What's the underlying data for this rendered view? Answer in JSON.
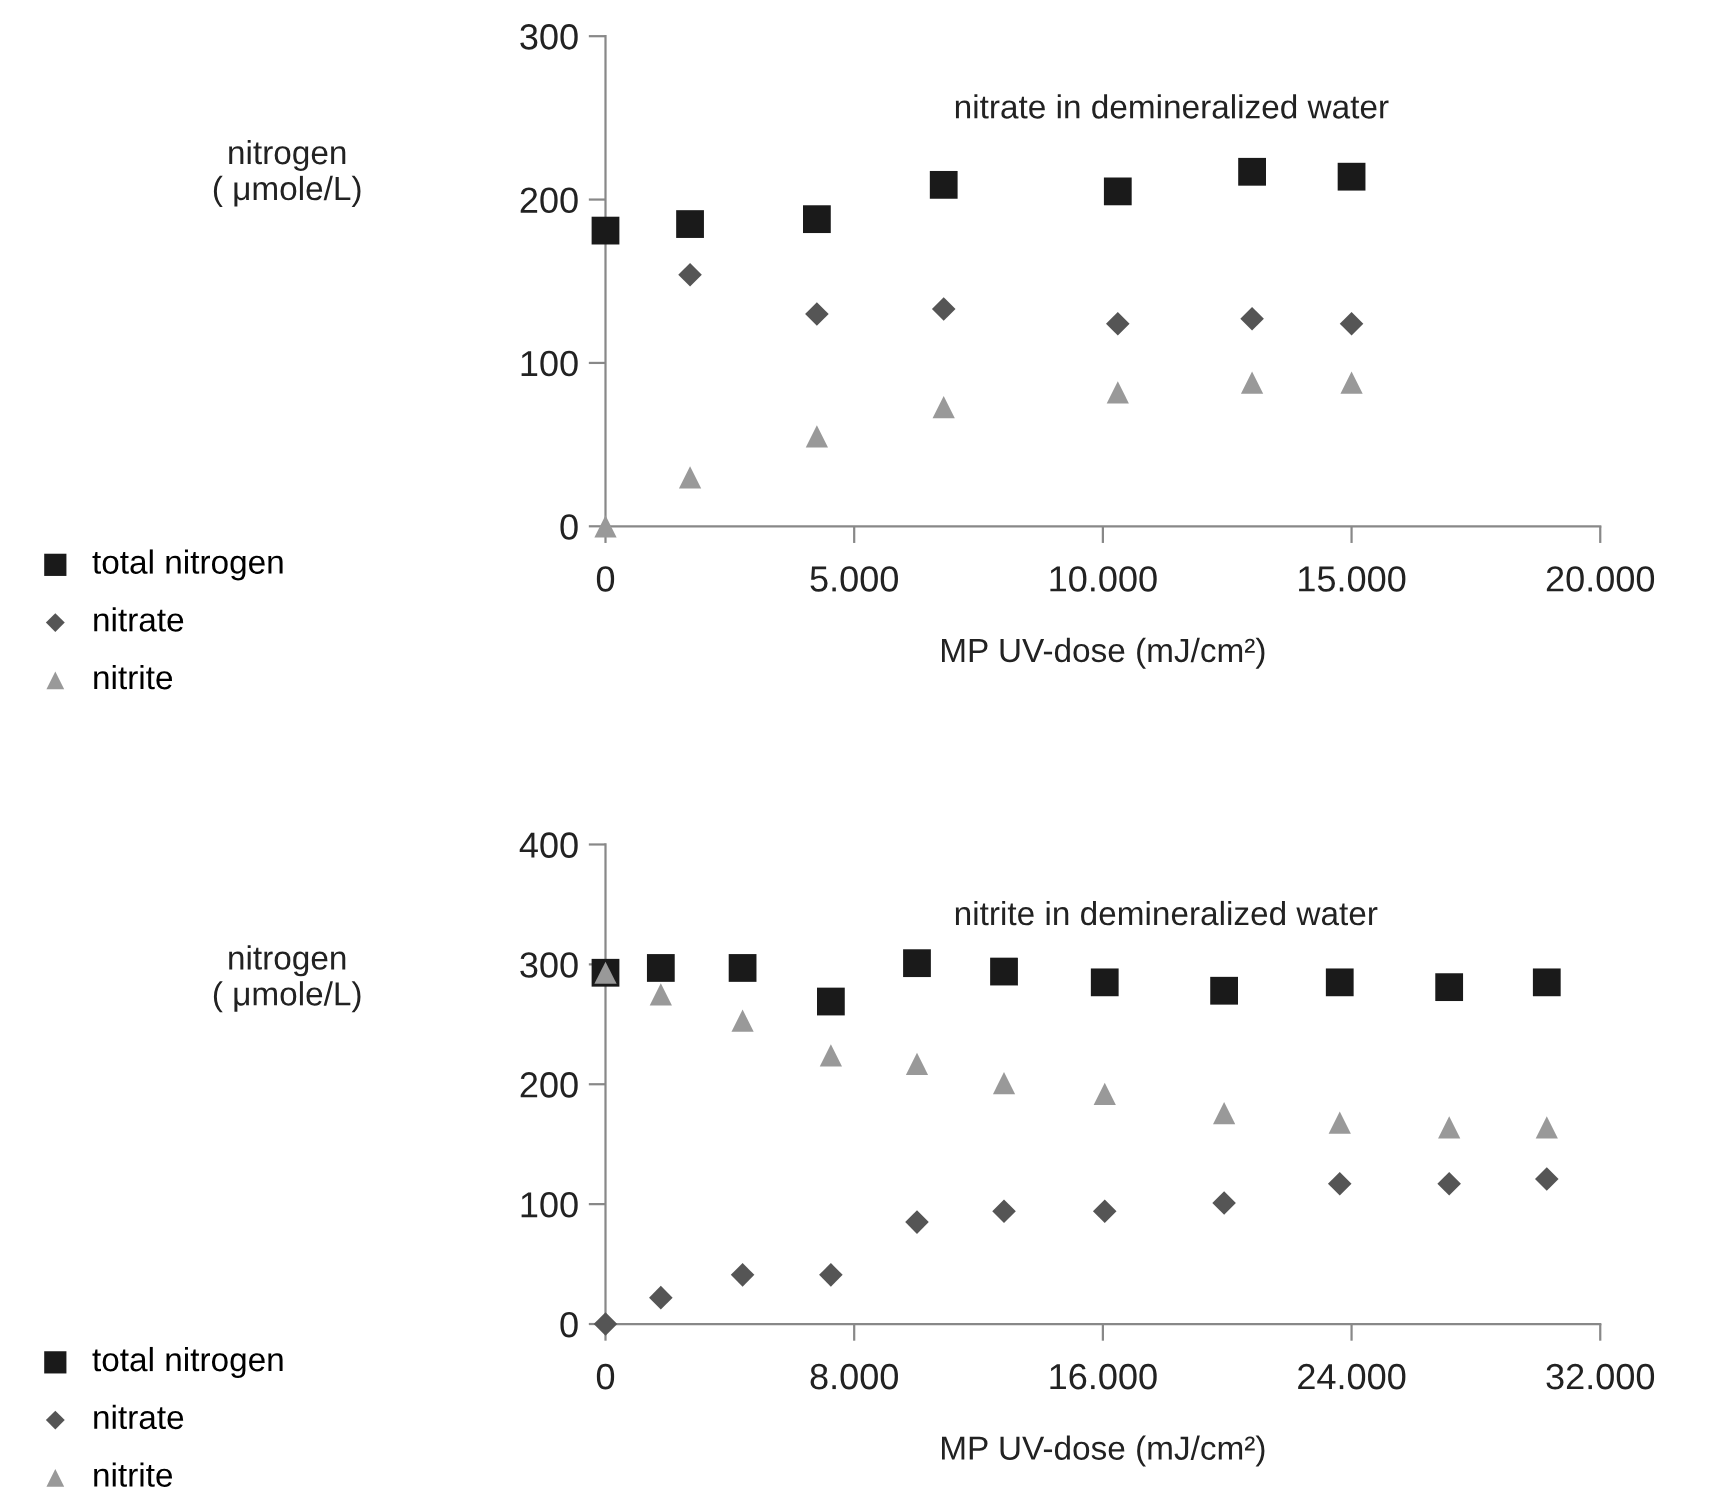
{
  "chart_data": [
    {
      "type": "scatter",
      "title": "nitrate in demineralized water",
      "xlabel": "MP UV-dose (mJ/cm²)",
      "ylabel": "nitrogen\n( μmole/L)",
      "x": [
        0,
        1700,
        4250,
        6800,
        10300,
        13000,
        15000
      ],
      "series": [
        {
          "name": "total nitrogen",
          "color": "#1a1a1a",
          "marker": "square",
          "values": [
            181,
            185,
            188,
            209,
            205,
            217,
            214
          ]
        },
        {
          "name": "nitrate",
          "color": "#555555",
          "marker": "diamond",
          "values": [
            null,
            154,
            130,
            133,
            124,
            127,
            124
          ]
        },
        {
          "name": "nitrite",
          "color": "#999999",
          "marker": "triangle",
          "values": [
            0,
            30,
            55,
            73,
            82,
            88,
            88
          ]
        }
      ],
      "xlim": [
        0,
        20000
      ],
      "xticks": [
        0,
        {
          "value": 5000,
          "label": "5.000"
        },
        {
          "value": 10000,
          "label": "10.000"
        },
        {
          "value": 15000,
          "label": "15.000"
        },
        {
          "value": 20000,
          "label": "20.000"
        }
      ],
      "ylim": [
        0,
        300
      ],
      "yticks": [
        0,
        100,
        200,
        300
      ],
      "grid": false,
      "legend": "left"
    },
    {
      "type": "scatter",
      "title": "nitrite in demineralized water",
      "xlabel": "MP UV-dose (mJ/cm²)",
      "ylabel": "nitrogen\n( μmole/L)",
      "x": [
        0,
        1780,
        4410,
        7250,
        10020,
        12820,
        16060,
        19900,
        23620,
        27140,
        30280
      ],
      "series": [
        {
          "name": "total nitrogen",
          "color": "#1a1a1a",
          "marker": "square",
          "values": [
            293,
            297,
            297,
            269,
            301,
            294,
            285,
            278,
            285,
            281,
            285
          ]
        },
        {
          "name": "nitrate",
          "color": "#555555",
          "marker": "diamond",
          "values": [
            0,
            22,
            41,
            41,
            85,
            94,
            94,
            101,
            117,
            117,
            121
          ]
        },
        {
          "name": "nitrite",
          "color": "#999999",
          "marker": "triangle",
          "values": [
            293,
            275,
            253,
            224,
            217,
            201,
            192,
            176,
            168,
            164,
            164
          ]
        }
      ],
      "xlim": [
        0,
        32000
      ],
      "xticks": [
        0,
        {
          "value": 8000,
          "label": "8.000"
        },
        {
          "value": 16000,
          "label": "16.000"
        },
        {
          "value": 24000,
          "label": "24.000"
        },
        {
          "value": 32000,
          "label": "32.000"
        }
      ],
      "ylim": [
        0,
        400
      ],
      "yticks": [
        0,
        100,
        200,
        300,
        400
      ],
      "grid": false,
      "legend": "left"
    }
  ]
}
